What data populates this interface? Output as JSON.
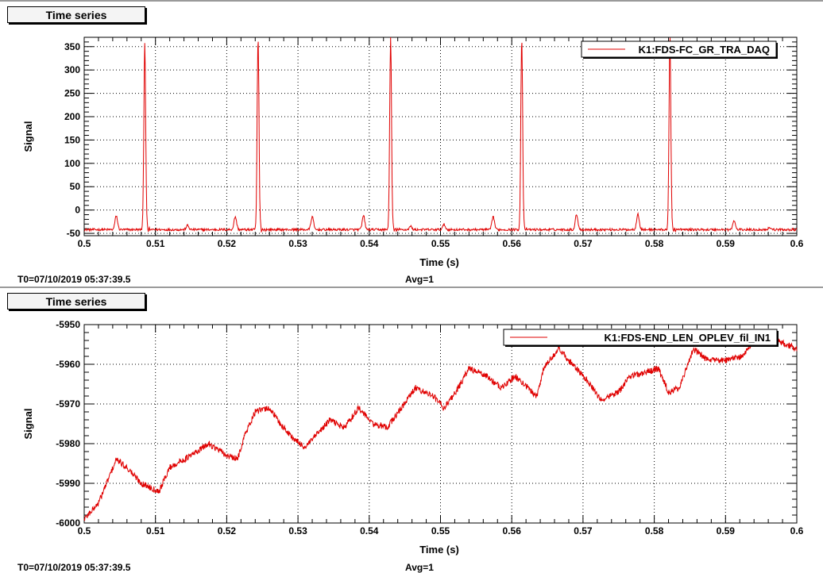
{
  "panels": [
    {
      "title": "Time series",
      "footer": {
        "t0": "T0=07/10/2019 05:37:39.5",
        "avg": "Avg=1"
      }
    },
    {
      "title": "Time series",
      "footer": {
        "t0": "T0=07/10/2019 05:37:39.5",
        "avg": "Avg=1"
      }
    }
  ],
  "colors": {
    "series": "#e00000",
    "axis": "#000000",
    "grid": "#000000"
  },
  "chart_data": [
    {
      "type": "line",
      "xlabel": "Time (s)",
      "ylabel": "Signal",
      "xlim": [
        0.5,
        0.6
      ],
      "ylim": [
        -55,
        370
      ],
      "xticks": [
        0.5,
        0.51,
        0.52,
        0.53,
        0.54,
        0.55,
        0.56,
        0.57,
        0.58,
        0.59,
        0.6
      ],
      "xtick_labels": [
        "0.5",
        "0.51",
        "0.52",
        "0.53",
        "0.54",
        "0.55",
        "0.56",
        "0.57",
        "0.58",
        "0.59",
        "0.6"
      ],
      "yticks": [
        -50,
        0,
        50,
        100,
        150,
        200,
        250,
        300,
        350
      ],
      "ytick_labels": [
        "-50",
        "0",
        "50",
        "100",
        "150",
        "200",
        "250",
        "300",
        "350"
      ],
      "grid": true,
      "legend_position": "top-right",
      "series": [
        {
          "name": "K1:FDS-FC_GR_TRA_DAQ",
          "baseline": -42,
          "spikes": [
            {
              "x": 0.5085,
              "y": 360
            },
            {
              "x": 0.5244,
              "y": 370
            },
            {
              "x": 0.543,
              "y": 370
            },
            {
              "x": 0.5614,
              "y": 370
            },
            {
              "x": 0.5822,
              "y": 370
            }
          ],
          "small_peaks": [
            {
              "x": 0.5045,
              "y": -12
            },
            {
              "x": 0.5145,
              "y": -33
            },
            {
              "x": 0.5212,
              "y": -14
            },
            {
              "x": 0.532,
              "y": -14
            },
            {
              "x": 0.5392,
              "y": -12
            },
            {
              "x": 0.5458,
              "y": -35
            },
            {
              "x": 0.5505,
              "y": -31
            },
            {
              "x": 0.5574,
              "y": -14
            },
            {
              "x": 0.5691,
              "y": -9
            },
            {
              "x": 0.5777,
              "y": -7
            },
            {
              "x": 0.5912,
              "y": -23
            },
            {
              "x": 0.5962,
              "y": -37
            }
          ]
        }
      ]
    },
    {
      "type": "line",
      "xlabel": "Time (s)",
      "ylabel": "Signal",
      "xlim": [
        0.5,
        0.6
      ],
      "ylim": [
        -6000,
        -5950
      ],
      "xticks": [
        0.5,
        0.51,
        0.52,
        0.53,
        0.54,
        0.55,
        0.56,
        0.57,
        0.58,
        0.59,
        0.6
      ],
      "xtick_labels": [
        "0.5",
        "0.51",
        "0.52",
        "0.53",
        "0.54",
        "0.55",
        "0.56",
        "0.57",
        "0.58",
        "0.59",
        "0.6"
      ],
      "yticks": [
        -6000,
        -5990,
        -5980,
        -5970,
        -5960,
        -5950
      ],
      "ytick_labels": [
        "-6000",
        "-5990",
        "-5980",
        "-5970",
        "-5960",
        "-5950"
      ],
      "grid": true,
      "legend_position": "top-right",
      "series": [
        {
          "name": "K1:FDS-END_LEN_OPLEV_fil_IN1",
          "x": [
            0.5,
            0.502,
            0.5045,
            0.506,
            0.508,
            0.5105,
            0.512,
            0.515,
            0.5175,
            0.52,
            0.5215,
            0.5225,
            0.524,
            0.526,
            0.5275,
            0.5295,
            0.531,
            0.533,
            0.5345,
            0.5365,
            0.5385,
            0.5405,
            0.5425,
            0.5445,
            0.5465,
            0.549,
            0.5505,
            0.5525,
            0.554,
            0.5565,
            0.5585,
            0.5605,
            0.5635,
            0.5645,
            0.5665,
            0.5685,
            0.5705,
            0.5725,
            0.575,
            0.5765,
            0.579,
            0.5805,
            0.582,
            0.5835,
            0.5855,
            0.5875,
            0.59,
            0.5925,
            0.5945,
            0.597,
            0.6
          ],
          "y": [
            -5999,
            -5995,
            -5984,
            -5986,
            -5990,
            -5992,
            -5986,
            -5983,
            -5980,
            -5983,
            -5984,
            -5978,
            -5972,
            -5971,
            -5975,
            -5979,
            -5981,
            -5977,
            -5974,
            -5976,
            -5971,
            -5975,
            -5976,
            -5971,
            -5966,
            -5968,
            -5971,
            -5966,
            -5961,
            -5963,
            -5966,
            -5963,
            -5968,
            -5961,
            -5956,
            -5960,
            -5964,
            -5969,
            -5967,
            -5963,
            -5962,
            -5961,
            -5967,
            -5966,
            -5956,
            -5959,
            -5959,
            -5958,
            -5952,
            -5954,
            -5956
          ]
        }
      ]
    }
  ]
}
